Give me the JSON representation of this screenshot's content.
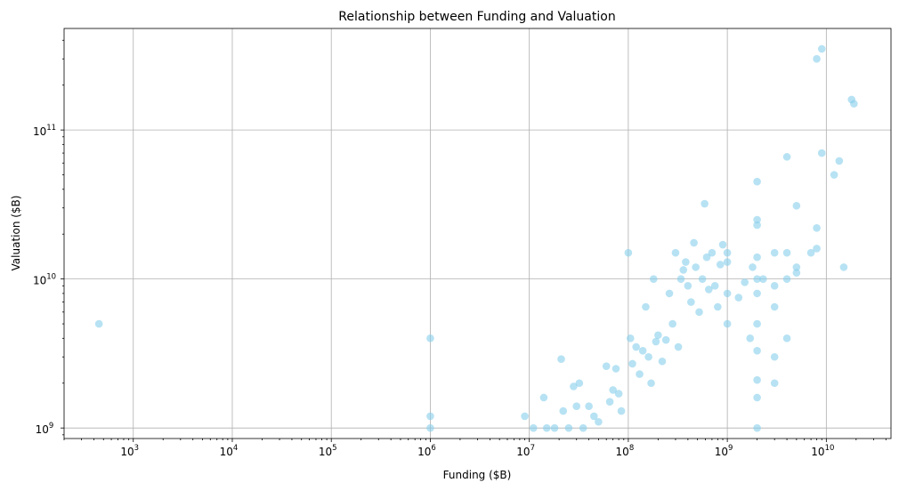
{
  "chart_data": {
    "type": "scatter",
    "title": "Relationship between Funding and Valuation",
    "xlabel": "Funding ($B)",
    "ylabel": "Valuation ($B)",
    "xscale": "log",
    "yscale": "log",
    "xlim": [
      200,
      45000000000
    ],
    "ylim": [
      850000000,
      480000000000
    ],
    "xticks": [
      {
        "value": 1000,
        "base": "10",
        "exp": "3"
      },
      {
        "value": 10000,
        "base": "10",
        "exp": "4"
      },
      {
        "value": 100000,
        "base": "10",
        "exp": "5"
      },
      {
        "value": 1000000,
        "base": "10",
        "exp": "6"
      },
      {
        "value": 10000000,
        "base": "10",
        "exp": "7"
      },
      {
        "value": 100000000,
        "base": "10",
        "exp": "8"
      },
      {
        "value": 1000000000,
        "base": "10",
        "exp": "9"
      },
      {
        "value": 10000000000,
        "base": "10",
        "exp": "10"
      }
    ],
    "yticks": [
      {
        "value": 1000000000,
        "base": "10",
        "exp": "9"
      },
      {
        "value": 10000000000,
        "base": "10",
        "exp": "10"
      },
      {
        "value": 100000000000,
        "base": "10",
        "exp": "11"
      }
    ],
    "grid": true,
    "marker_color": "#87ceeb",
    "marker_alpha": 0.6,
    "points": [
      [
        450,
        5000000000
      ],
      [
        1000000,
        4000000000
      ],
      [
        1000000,
        1200000000
      ],
      [
        1000000,
        1000000000
      ],
      [
        9000000,
        1200000000
      ],
      [
        11000000,
        1000000000
      ],
      [
        14000000,
        1600000000
      ],
      [
        15000000,
        1000000000
      ],
      [
        18000000,
        1000000000
      ],
      [
        21000000,
        2900000000
      ],
      [
        22000000,
        1300000000
      ],
      [
        25000000,
        1000000000
      ],
      [
        28000000,
        1900000000
      ],
      [
        30000000,
        1400000000
      ],
      [
        32000000,
        2000000000
      ],
      [
        35000000,
        1000000000
      ],
      [
        40000000,
        1400000000
      ],
      [
        45000000,
        1200000000
      ],
      [
        50000000,
        1100000000
      ],
      [
        60000000,
        2600000000
      ],
      [
        65000000,
        1500000000
      ],
      [
        70000000,
        1800000000
      ],
      [
        75000000,
        2500000000
      ],
      [
        80000000,
        1700000000
      ],
      [
        85000000,
        1300000000
      ],
      [
        100000000,
        15000000000
      ],
      [
        105000000,
        4000000000
      ],
      [
        110000000,
        2700000000
      ],
      [
        120000000,
        3500000000
      ],
      [
        130000000,
        2300000000
      ],
      [
        140000000,
        3300000000
      ],
      [
        150000000,
        6500000000
      ],
      [
        160000000,
        3000000000
      ],
      [
        170000000,
        2000000000
      ],
      [
        180000000,
        10000000000
      ],
      [
        190000000,
        3800000000
      ],
      [
        200000000,
        4200000000
      ],
      [
        220000000,
        2800000000
      ],
      [
        240000000,
        3900000000
      ],
      [
        260000000,
        8000000000
      ],
      [
        280000000,
        5000000000
      ],
      [
        300000000,
        15000000000
      ],
      [
        320000000,
        3500000000
      ],
      [
        340000000,
        10000000000
      ],
      [
        360000000,
        11500000000
      ],
      [
        380000000,
        13000000000
      ],
      [
        400000000,
        9000000000
      ],
      [
        430000000,
        7000000000
      ],
      [
        460000000,
        17500000000
      ],
      [
        480000000,
        12000000000
      ],
      [
        520000000,
        6000000000
      ],
      [
        560000000,
        10000000000
      ],
      [
        590000000,
        32000000000
      ],
      [
        620000000,
        14000000000
      ],
      [
        650000000,
        8500000000
      ],
      [
        700000000,
        15000000000
      ],
      [
        750000000,
        9000000000
      ],
      [
        800000000,
        6500000000
      ],
      [
        850000000,
        12500000000
      ],
      [
        900000000,
        17000000000
      ],
      [
        1000000000,
        13000000000
      ],
      [
        1000000000,
        15000000000
      ],
      [
        1000000000,
        8000000000
      ],
      [
        1000000000,
        5000000000
      ],
      [
        1300000000,
        7500000000
      ],
      [
        1500000000,
        9500000000
      ],
      [
        1700000000,
        4000000000
      ],
      [
        1800000000,
        12000000000
      ],
      [
        2000000000,
        45000000000
      ],
      [
        2000000000,
        25000000000
      ],
      [
        2000000000,
        23000000000
      ],
      [
        2000000000,
        14000000000
      ],
      [
        2000000000,
        10000000000
      ],
      [
        2000000000,
        8000000000
      ],
      [
        2000000000,
        5000000000
      ],
      [
        2000000000,
        3300000000
      ],
      [
        2000000000,
        2100000000
      ],
      [
        2000000000,
        1600000000
      ],
      [
        2000000000,
        1000000000
      ],
      [
        2300000000,
        10000000000
      ],
      [
        3000000000,
        15000000000
      ],
      [
        3000000000,
        9000000000
      ],
      [
        3000000000,
        6500000000
      ],
      [
        3000000000,
        3000000000
      ],
      [
        3000000000,
        2000000000
      ],
      [
        4000000000,
        66000000000
      ],
      [
        4000000000,
        15000000000
      ],
      [
        4000000000,
        10000000000
      ],
      [
        4000000000,
        4000000000
      ],
      [
        5000000000,
        31000000000
      ],
      [
        5000000000,
        12000000000
      ],
      [
        5000000000,
        11000000000
      ],
      [
        7000000000,
        15000000000
      ],
      [
        8000000000,
        300000000000
      ],
      [
        8000000000,
        22000000000
      ],
      [
        8000000000,
        16000000000
      ],
      [
        9000000000,
        350000000000
      ],
      [
        9000000000,
        70000000000
      ],
      [
        12000000000,
        50000000000
      ],
      [
        13500000000,
        62000000000
      ],
      [
        15000000000,
        12000000000
      ],
      [
        18000000000,
        160000000000
      ],
      [
        19000000000,
        150000000000
      ]
    ]
  }
}
